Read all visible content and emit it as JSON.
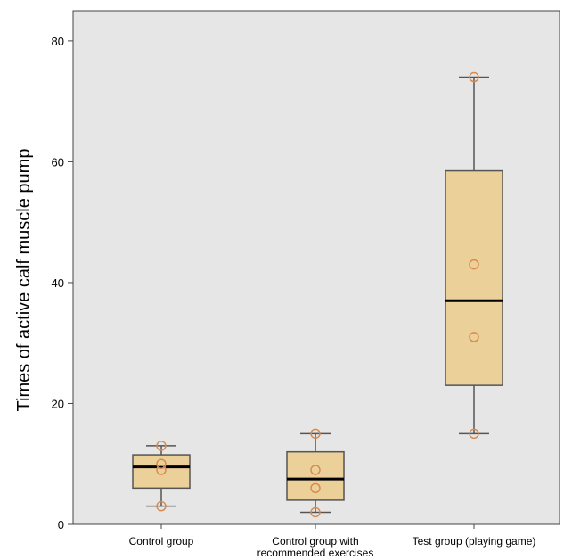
{
  "chart_data": {
    "type": "box",
    "ylabel": "Times of active calf muscle pump",
    "xlabel": "",
    "ylim": [
      0,
      85
    ],
    "yticks": [
      0,
      20,
      40,
      60,
      80
    ],
    "grid": false,
    "colors": {
      "plot_background": "#e6e6e6",
      "box_fill": "#ecd09a",
      "box_stroke": "#555555",
      "median": "#000000",
      "point": "#d98b4e"
    },
    "categories": [
      {
        "label_lines": [
          "Control group"
        ],
        "whisker_low": 3,
        "q1": 6,
        "median": 9.5,
        "q3": 11.5,
        "whisker_high": 13,
        "points": [
          3,
          9,
          10,
          13
        ]
      },
      {
        "label_lines": [
          "Control group with",
          "recommended exercises"
        ],
        "whisker_low": 2,
        "q1": 4,
        "median": 7.5,
        "q3": 12,
        "whisker_high": 15,
        "points": [
          2,
          6,
          9,
          15
        ]
      },
      {
        "label_lines": [
          "Test group (playing game)"
        ],
        "whisker_low": 15,
        "q1": 23,
        "median": 37,
        "q3": 58.5,
        "whisker_high": 74,
        "points": [
          15,
          31,
          43,
          74
        ]
      }
    ]
  }
}
